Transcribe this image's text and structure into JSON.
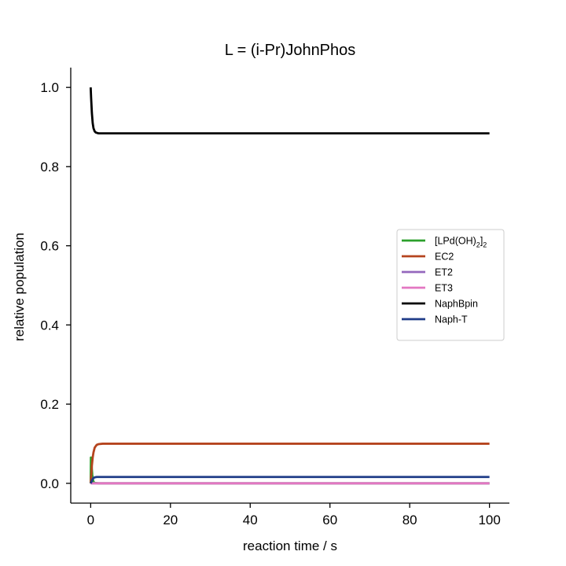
{
  "chart_data": {
    "type": "line",
    "title": "L = (i-Pr)JohnPhos",
    "xlabel": "reaction time / s",
    "ylabel": "relative population",
    "xlim": [
      -5,
      105
    ],
    "ylim": [
      -0.05,
      1.05
    ],
    "xticks": [
      0,
      20,
      40,
      60,
      80,
      100
    ],
    "yticks": [
      0.0,
      0.2,
      0.4,
      0.6,
      0.8,
      1.0
    ],
    "xtick_labels": [
      "0",
      "20",
      "40",
      "60",
      "80",
      "100"
    ],
    "ytick_labels": [
      "0.0",
      "0.2",
      "0.4",
      "0.6",
      "0.8",
      "1.0"
    ],
    "grid": false,
    "legend_position": "center-right",
    "series": [
      {
        "name": "[LPd(OH)2]2",
        "name_base": "[LPd(OH)",
        "name_sub1": "2",
        "name_mid": "]",
        "name_sub2": "2",
        "color": "#2ca02c",
        "x": [
          0,
          0.05,
          0.1,
          0.15,
          0.2,
          0.3,
          0.4,
          0.5,
          0.7,
          1.0,
          2,
          100
        ],
        "y": [
          0.0,
          0.065,
          0.065,
          0.06,
          0.05,
          0.035,
          0.022,
          0.012,
          0.004,
          0.001,
          0.0,
          0.0
        ]
      },
      {
        "name": "EC2",
        "color": "#b5441e",
        "x": [
          0,
          0.1,
          0.2,
          0.3,
          0.5,
          0.7,
          1.0,
          1.5,
          2,
          3,
          5,
          100
        ],
        "y": [
          0.0,
          0.015,
          0.03,
          0.045,
          0.065,
          0.078,
          0.09,
          0.097,
          0.099,
          0.1,
          0.1,
          0.1
        ]
      },
      {
        "name": "ET2",
        "color": "#9467bd",
        "x": [
          0,
          0.5,
          100
        ],
        "y": [
          0.0,
          0.0,
          0.0
        ]
      },
      {
        "name": "ET3",
        "color": "#e377c2",
        "x": [
          0,
          0.5,
          100
        ],
        "y": [
          0.0,
          0.0,
          0.0
        ]
      },
      {
        "name": "NaphBpin",
        "color": "#000000",
        "x": [
          0,
          0.1,
          0.2,
          0.3,
          0.5,
          0.7,
          1.0,
          1.3,
          1.6,
          2.0,
          3,
          100
        ],
        "y": [
          1.0,
          0.975,
          0.955,
          0.935,
          0.91,
          0.897,
          0.889,
          0.886,
          0.885,
          0.884,
          0.884,
          0.884
        ]
      },
      {
        "name": "Naph-T",
        "color": "#1f3c88",
        "x": [
          0,
          0.2,
          0.4,
          0.6,
          0.8,
          1.0,
          1.5,
          2,
          3,
          100
        ],
        "y": [
          0.0,
          0.004,
          0.009,
          0.012,
          0.014,
          0.015,
          0.016,
          0.016,
          0.016,
          0.016
        ]
      }
    ]
  }
}
